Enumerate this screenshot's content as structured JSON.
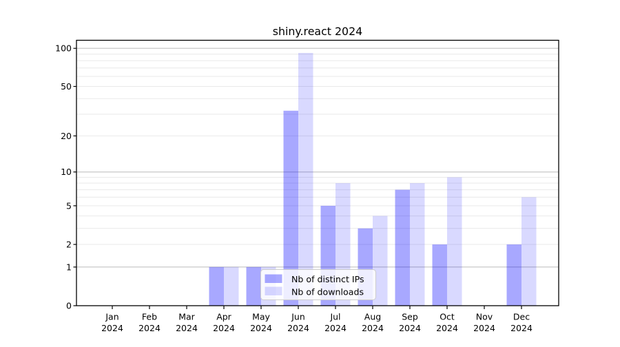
{
  "chart_data": {
    "type": "bar",
    "title": "shiny.react 2024",
    "categories": [
      "Jan",
      "Feb",
      "Mar",
      "Apr",
      "May",
      "Jun",
      "Jul",
      "Aug",
      "Sep",
      "Oct",
      "Nov",
      "Dec"
    ],
    "year": "2024",
    "series": [
      {
        "name": "Nb of distinct IPs",
        "color": "rgba(0,0,255,0.34)",
        "values": [
          0,
          0,
          0,
          1,
          1,
          32,
          5,
          3,
          7,
          2,
          0,
          2
        ]
      },
      {
        "name": "Nb of downloads",
        "color": "rgba(0,0,255,0.15)",
        "values": [
          0,
          0,
          0,
          1,
          1,
          92,
          8,
          4,
          8,
          9,
          0,
          6
        ]
      }
    ],
    "xlabel": "",
    "ylabel": "",
    "y_scale": "log10(1+y)",
    "ylim": [
      0,
      117
    ],
    "y_tick_labels": [
      "100",
      "50",
      "20",
      "10",
      "5",
      "2",
      "1",
      "0"
    ],
    "y_tick_values": [
      100,
      50,
      20,
      10,
      5,
      2,
      1,
      0
    ],
    "grid": "on",
    "grid_major_values": [
      1,
      10,
      100
    ],
    "grid_minor_values": [
      2,
      3,
      4,
      5,
      6,
      7,
      8,
      9,
      20,
      30,
      40,
      50,
      60,
      70,
      80,
      90
    ],
    "legend": {
      "position": "lower-center",
      "entries": [
        "Nb of distinct IPs",
        "Nb of downloads"
      ]
    },
    "colors": {
      "grid_major": "#c2c2c2",
      "grid_minor": "#e9e9e9",
      "spine": "#000000",
      "tick_text": "#000000",
      "legend_border": "#cccccc",
      "legend_bg": "rgba(255,255,255,0.8)"
    }
  }
}
